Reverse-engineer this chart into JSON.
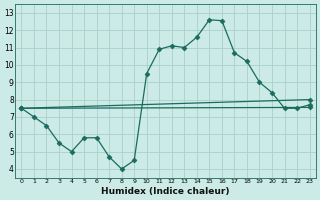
{
  "xlabel": "Humidex (Indice chaleur)",
  "bg_color": "#cceae6",
  "grid_color": "#aacfca",
  "line_color": "#1a6b60",
  "xlim": [
    -0.5,
    23.5
  ],
  "ylim": [
    3.5,
    13.5
  ],
  "xticks": [
    0,
    1,
    2,
    3,
    4,
    5,
    6,
    7,
    8,
    9,
    10,
    11,
    12,
    13,
    14,
    15,
    16,
    17,
    18,
    19,
    20,
    21,
    22,
    23
  ],
  "yticks": [
    4,
    5,
    6,
    7,
    8,
    9,
    10,
    11,
    12,
    13
  ],
  "line1_x": [
    0,
    1,
    2,
    3,
    4,
    5,
    6,
    7,
    8,
    9,
    10,
    11,
    12,
    13,
    14,
    15,
    16,
    17,
    18,
    19,
    20,
    21,
    22,
    23
  ],
  "line1_y": [
    7.5,
    7.0,
    6.5,
    5.5,
    5.0,
    5.8,
    5.8,
    4.7,
    4.0,
    4.5,
    9.5,
    10.9,
    11.1,
    11.0,
    11.6,
    12.6,
    12.55,
    10.7,
    10.2,
    9.0,
    8.4,
    7.5,
    7.5,
    7.7
  ],
  "line2_x": [
    0,
    23
  ],
  "line2_y": [
    7.5,
    8.0
  ],
  "line3_x": [
    0,
    23
  ],
  "line3_y": [
    7.5,
    7.55
  ],
  "marker": "D",
  "markersize": 2.5,
  "linewidth": 0.9
}
